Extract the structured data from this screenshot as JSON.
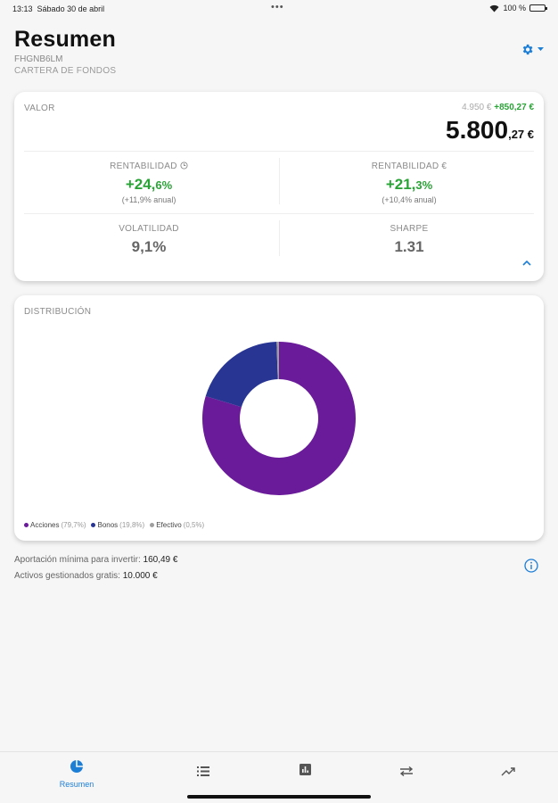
{
  "status": {
    "time": "13:13",
    "date": "Sábado 30 de abril",
    "battery": "100 %"
  },
  "header": {
    "title": "Resumen",
    "code": "FHGNB6LM",
    "type": "CARTERA DE FONDOS"
  },
  "summary": {
    "value_label": "VALOR",
    "base_value": "4.950 €",
    "gain": "+850,27 €",
    "value_int": "5.800",
    "value_dec": ",27 €",
    "return_pct_label": "RENTABILIDAD",
    "return_pct_int": "+24,",
    "return_pct_dec": "6%",
    "return_pct_annual": "(+11,9% anual)",
    "return_eur_label": "RENTABILIDAD €",
    "return_eur_int": "+21,",
    "return_eur_dec": "3%",
    "return_eur_annual": "(+10,4% anual)",
    "volatility_label": "VOLATILIDAD",
    "volatility": "9,1%",
    "sharpe_label": "SHARPE",
    "sharpe": "1.31"
  },
  "distribution": {
    "label": "DISTRIBUCIÓN",
    "items": [
      {
        "name": "Acciones",
        "pct": "(79,7%)",
        "value": 79.7,
        "color": "#6a1b9a"
      },
      {
        "name": "Bonos",
        "pct": "(19,8%)",
        "value": 19.8,
        "color": "#283593"
      },
      {
        "name": "Efectivo",
        "pct": "(0,5%)",
        "value": 0.5,
        "color": "#9e9e9e"
      }
    ]
  },
  "footer": {
    "min_contribution_label": "Aportación mínima para invertir:",
    "min_contribution": "160,49 €",
    "managed_free_label": "Activos gestionados gratis:",
    "managed_free": "10.000 €"
  },
  "nav": {
    "home_label": "Resumen"
  },
  "colors": {
    "accent": "#1d7ed6",
    "positive": "#2aa336"
  }
}
